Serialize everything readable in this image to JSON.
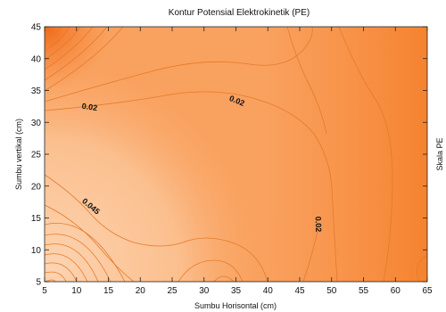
{
  "chart_data": {
    "type": "contour",
    "title": "Kontur Potensial Elektrokinetik (PE)",
    "xlabel": "Sumbu Horisontal (cm)",
    "ylabel": "Sumbu vertikal (cm)",
    "colorbar_label": "Skala PE",
    "xlim": [
      5,
      65
    ],
    "ylim": [
      5,
      45
    ],
    "xticks": [
      5,
      10,
      15,
      20,
      25,
      30,
      35,
      40,
      45,
      50,
      55,
      60,
      65
    ],
    "yticks": [
      5,
      10,
      15,
      20,
      25,
      30,
      35,
      40,
      45
    ],
    "grid": false,
    "contour_labels": [
      {
        "text": "0.02",
        "x": 12,
        "y": 32
      },
      {
        "text": "0.02",
        "x": 35,
        "y": 33
      },
      {
        "text": "0.045",
        "x": 12,
        "y": 16.5
      },
      {
        "text": "0.02",
        "x": 47.5,
        "y": 14
      }
    ],
    "colors": {
      "fill_light": "#fbbf8e",
      "fill_mid": "#f9a15e",
      "fill_dark": "#f7873a",
      "fill_darkest": "#f26a1a",
      "line": "#e57a2a"
    }
  }
}
